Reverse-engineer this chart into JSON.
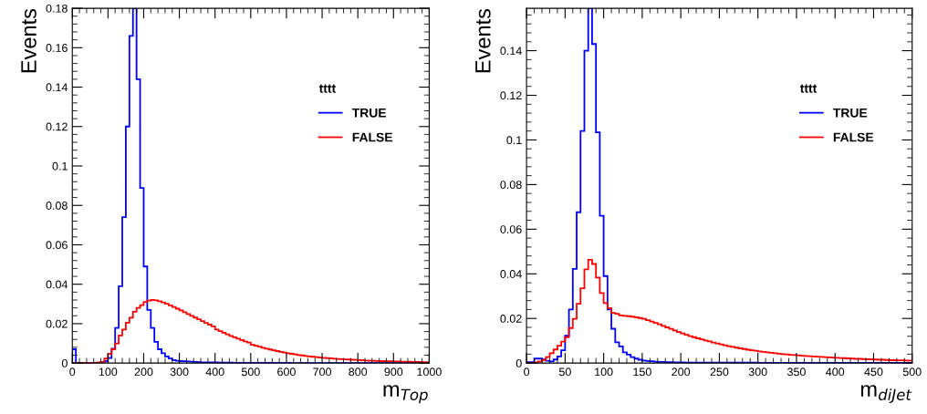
{
  "chart_data": [
    {
      "type": "histogram",
      "xlabel": "m$_{Top}$",
      "ylabel": "Events",
      "legend_title": "tttt",
      "legend": "top right",
      "grid": false,
      "xlim": [
        0,
        1000
      ],
      "ylim": [
        0,
        0.18
      ],
      "xticks": [
        0,
        100,
        200,
        300,
        400,
        500,
        600,
        700,
        800,
        900,
        1000
      ],
      "yticks": [
        0,
        0.02,
        0.04,
        0.06,
        0.08,
        0.1,
        0.12,
        0.14,
        0.16,
        0.18
      ],
      "bins": [
        0,
        10,
        20,
        30,
        40,
        50,
        60,
        70,
        80,
        90,
        100,
        110,
        120,
        130,
        140,
        150,
        160,
        170,
        180,
        190,
        200,
        210,
        220,
        230,
        240,
        250,
        260,
        270,
        280,
        290,
        300,
        310,
        320,
        330,
        340,
        350,
        360,
        370,
        380,
        390,
        400,
        410,
        420,
        430,
        440,
        450,
        460,
        470,
        480,
        490,
        500,
        510,
        520,
        530,
        540,
        550,
        560,
        570,
        580,
        590,
        600,
        610,
        620,
        630,
        640,
        650,
        660,
        670,
        680,
        690,
        700,
        710,
        720,
        730,
        740,
        750,
        760,
        770,
        780,
        790,
        800,
        810,
        820,
        830,
        840,
        850,
        860,
        870,
        880,
        890,
        900,
        910,
        920,
        930,
        940,
        950,
        960,
        970,
        980,
        990,
        1000
      ],
      "series": [
        {
          "name": "TRUE",
          "color": "#0000ff",
          "values": [
            0.007,
            0,
            0,
            0,
            0,
            0,
            0,
            0,
            0.0005,
            0.001,
            0.0026,
            0.0073,
            0.0178,
            0.039,
            0.074,
            0.12,
            0.166,
            0.18,
            0.144,
            0.0888,
            0.049,
            0.027,
            0.0178,
            0.0108,
            0.007,
            0.005,
            0.0034,
            0.0023,
            0.0015,
            0.0012,
            0.001,
            0.0009,
            0.0008,
            0.0007,
            0.0006,
            0.0005,
            0.0004,
            0.0004,
            0.0003,
            0.0003,
            0.0003,
            0.0002,
            0.0002,
            0.0002,
            0.0002,
            0.0001,
            0.0001,
            0.0001,
            0.0001,
            0.0001,
            0.0001,
            0.0001,
            0.0001,
            0.0001,
            0.0001,
            0.0001,
            0.0001,
            0.0001,
            0.0001,
            0.0001,
            0.0001,
            0,
            0,
            0,
            0,
            0,
            0,
            0,
            0,
            0,
            0,
            0,
            0,
            0,
            0,
            0,
            0,
            0,
            0,
            0,
            0,
            0,
            0,
            0,
            0,
            0,
            0,
            0,
            0,
            0,
            0,
            0,
            0,
            0,
            0,
            0,
            0,
            0,
            0,
            0
          ]
        },
        {
          "name": "FALSE",
          "color": "#ff0000",
          "values": [
            0,
            0,
            0,
            0,
            0,
            0,
            0,
            0.0003,
            0.0006,
            0.0023,
            0.0046,
            0.007,
            0.01,
            0.014,
            0.017,
            0.0205,
            0.023,
            0.026,
            0.028,
            0.0294,
            0.031,
            0.0317,
            0.032,
            0.0318,
            0.0314,
            0.0308,
            0.0301,
            0.0293,
            0.0285,
            0.0276,
            0.0267,
            0.0258,
            0.0249,
            0.024,
            0.0231,
            0.0222,
            0.0213,
            0.0204,
            0.0195,
            0.0186,
            0.017,
            0.0162,
            0.0154,
            0.0146,
            0.0138,
            0.0131,
            0.0124,
            0.0117,
            0.011,
            0.0104,
            0.0093,
            0.0088,
            0.0083,
            0.0078,
            0.0073,
            0.0069,
            0.0065,
            0.0061,
            0.0057,
            0.0053,
            0.005,
            0.0047,
            0.0044,
            0.0041,
            0.0039,
            0.0036,
            0.0034,
            0.0032,
            0.003,
            0.0028,
            0.0027,
            0.0025,
            0.0024,
            0.0022,
            0.0021,
            0.002,
            0.0019,
            0.0018,
            0.0017,
            0.0016,
            0.0015,
            0.0014,
            0.0013,
            0.0012,
            0.0012,
            0.0011,
            0.001,
            0.001,
            0.0009,
            0.0009,
            0.0008,
            0.0008,
            0.0007,
            0.0007,
            0.0007,
            0.0006,
            0.0006,
            0.0006,
            0.0005,
            0.0005
          ]
        }
      ]
    },
    {
      "type": "histogram",
      "xlabel": "m$_{diJet}$",
      "ylabel": "Events",
      "legend_title": "tttt",
      "legend": "top right",
      "grid": false,
      "xlim": [
        0,
        500
      ],
      "ylim": [
        0,
        0.159
      ],
      "xticks": [
        0,
        50,
        100,
        150,
        200,
        250,
        300,
        350,
        400,
        450,
        500
      ],
      "yticks": [
        0,
        0.02,
        0.04,
        0.06,
        0.08,
        0.1,
        0.12,
        0.14
      ],
      "bins": [
        0,
        5,
        10,
        15,
        20,
        25,
        30,
        35,
        40,
        45,
        50,
        55,
        60,
        65,
        70,
        75,
        80,
        85,
        90,
        95,
        100,
        105,
        110,
        115,
        120,
        125,
        130,
        135,
        140,
        145,
        150,
        155,
        160,
        165,
        170,
        175,
        180,
        185,
        190,
        195,
        200,
        205,
        210,
        215,
        220,
        225,
        230,
        235,
        240,
        245,
        250,
        255,
        260,
        265,
        270,
        275,
        280,
        285,
        290,
        295,
        300,
        305,
        310,
        315,
        320,
        325,
        330,
        335,
        340,
        345,
        350,
        355,
        360,
        365,
        370,
        375,
        380,
        385,
        390,
        395,
        400,
        405,
        410,
        415,
        420,
        425,
        430,
        435,
        440,
        445,
        450,
        455,
        460,
        465,
        470,
        475,
        480,
        485,
        490,
        495,
        500
      ],
      "series": [
        {
          "name": "TRUE",
          "color": "#0000ff",
          "values": [
            0.0004,
            0.0004,
            0.002,
            0.002,
            0.0016,
            0.001,
            0.0007,
            0.0016,
            0.003,
            0.0057,
            0.0123,
            0.024,
            0.0422,
            0.0676,
            0.104,
            0.14,
            0.159,
            0.143,
            0.1034,
            0.066,
            0.039,
            0.024,
            0.0154,
            0.0093,
            0.0075,
            0.0048,
            0.0038,
            0.0027,
            0.002,
            0.0015,
            0.0011,
            0.0009,
            0.0008,
            0.0006,
            0.0005,
            0.0005,
            0.0004,
            0.0004,
            0.0003,
            0.0003,
            0.0003,
            0.0002,
            0.0002,
            0.0002,
            0.0002,
            0.0002,
            0.0002,
            0.0002,
            0.0002,
            0.0002,
            0.0002,
            0.0002,
            0.0002,
            0.0002,
            0.0002,
            0.0002,
            0.0002,
            0.0002,
            0.0002,
            0.0002,
            0.0001,
            0.0001,
            0.0001,
            0.0001,
            0.0001,
            0.0001,
            0.0001,
            0.0001,
            0.0001,
            0.0001,
            0.0001,
            0.0001,
            0.0001,
            0.0001,
            0.0001,
            0.0001,
            0.0001,
            0.0001,
            0.0001,
            0.0001,
            0.0001,
            0.0001,
            0.0001,
            0.0001,
            0.0001,
            0.0001,
            0.0001,
            0.0001,
            0.0001,
            0.0001,
            0.0001,
            0.0001,
            0.0001,
            0.0001,
            0.0001,
            0.0001,
            0.0001,
            0.0001,
            0.0001,
            0.0001
          ]
        },
        {
          "name": "FALSE",
          "color": "#ff0000",
          "values": [
            0,
            0,
            0.0003,
            0.0007,
            0.0014,
            0.0027,
            0.0044,
            0.0061,
            0.0078,
            0.0096,
            0.0116,
            0.0157,
            0.0198,
            0.0266,
            0.0335,
            0.042,
            0.0463,
            0.0444,
            0.0383,
            0.0314,
            0.0269,
            0.0246,
            0.0225,
            0.0221,
            0.0214,
            0.0212,
            0.021,
            0.0208,
            0.0205,
            0.0202,
            0.0198,
            0.0192,
            0.0186,
            0.018,
            0.0174,
            0.0167,
            0.016,
            0.0153,
            0.0146,
            0.0139,
            0.0133,
            0.0127,
            0.0121,
            0.0116,
            0.0111,
            0.0106,
            0.0101,
            0.0097,
            0.0092,
            0.0088,
            0.0084,
            0.008,
            0.0076,
            0.0073,
            0.0069,
            0.0066,
            0.0063,
            0.006,
            0.0057,
            0.0055,
            0.0052,
            0.005,
            0.0048,
            0.0046,
            0.0044,
            0.0042,
            0.004,
            0.0039,
            0.0037,
            0.0036,
            0.0035,
            0.0033,
            0.0032,
            0.0031,
            0.003,
            0.0029,
            0.0028,
            0.0027,
            0.0026,
            0.0025,
            0.0024,
            0.0023,
            0.0022,
            0.0021,
            0.002,
            0.0019,
            0.0019,
            0.0018,
            0.0017,
            0.0017,
            0.0016,
            0.0015,
            0.0015,
            0.0014,
            0.0013,
            0.0013,
            0.0012,
            0.0012,
            0.0011,
            0.0011
          ]
        }
      ]
    }
  ]
}
